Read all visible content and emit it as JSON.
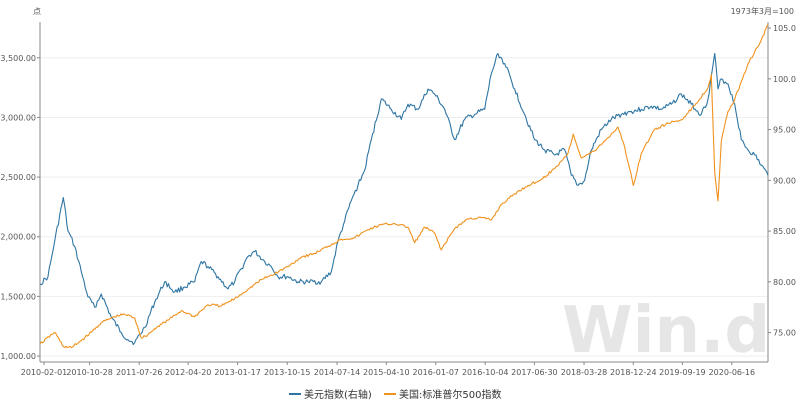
{
  "chart_data": {
    "type": "line",
    "left_unit": "点",
    "right_unit": "1973年3月=100",
    "watermark": "Win.d",
    "x_tick_labels": [
      "2010-02-01",
      "2010-10-28",
      "2011-07-26",
      "2012-04-20",
      "2013-01-17",
      "2013-10-15",
      "2014-07-14",
      "2015-04-10",
      "2016-01-07",
      "2016-10-04",
      "2017-06-30",
      "2018-03-28",
      "2018-12-24",
      "2019-09-19",
      "2020-06-16"
    ],
    "left_axis": {
      "min": 950,
      "max": 3800,
      "ticks": [
        "1,000.00",
        "1,500.00",
        "2,000.00",
        "2,500.00",
        "3,000.00",
        "3,500.00"
      ],
      "tick_values": [
        1000,
        1500,
        2000,
        2500,
        3000,
        3500
      ]
    },
    "right_axis": {
      "min": 72.1,
      "max": 105.6,
      "ticks": [
        "75.00",
        "80.00",
        "85.00",
        "90.00",
        "95.00",
        "100.00",
        "105.00"
      ],
      "tick_values": [
        75,
        80,
        85,
        90,
        95,
        100,
        105
      ]
    },
    "series": [
      {
        "name": "美元指数(右轴)",
        "axis": "right",
        "color": "#2e75a3",
        "x": [
          2010.08,
          2010.2,
          2010.3,
          2010.43,
          2010.5,
          2010.6,
          2010.7,
          2010.8,
          2010.9,
          2011.0,
          2011.15,
          2011.3,
          2011.4,
          2011.5,
          2011.65,
          2011.8,
          2011.95,
          2012.1,
          2012.25,
          2012.4,
          2012.5,
          2012.6,
          2012.75,
          2012.9,
          2013.0,
          2013.1,
          2013.2,
          2013.3,
          2013.45,
          2013.55,
          2013.65,
          2013.8,
          2013.95,
          2014.1,
          2014.3,
          2014.45,
          2014.55,
          2014.65,
          2014.75,
          2014.85,
          2014.95,
          2015.05,
          2015.2,
          2015.35,
          2015.5,
          2015.6,
          2015.75,
          2015.9,
          2016.0,
          2016.15,
          2016.3,
          2016.45,
          2016.6,
          2016.75,
          2016.85,
          2016.95,
          2017.05,
          2017.2,
          2017.35,
          2017.5,
          2017.65,
          2017.8,
          2017.95,
          2018.05,
          2018.15,
          2018.25,
          2018.35,
          2018.5,
          2018.65,
          2018.8,
          2018.95,
          2019.1,
          2019.25,
          2019.4,
          2019.55,
          2019.7,
          2019.85,
          2020.0,
          2020.1,
          2020.2,
          2020.25,
          2020.3,
          2020.4,
          2020.5,
          2020.6,
          2020.7,
          2020.8,
          2020.9,
          2021.0
        ],
        "y": [
          79.8,
          80.5,
          84.0,
          88.3,
          85.0,
          83.5,
          81.0,
          78.5,
          77.5,
          78.8,
          76.5,
          75.0,
          74.3,
          74.0,
          75.5,
          78.0,
          80.0,
          79.0,
          79.5,
          80.0,
          82.0,
          81.5,
          80.5,
          79.3,
          80.0,
          81.3,
          82.5,
          83.0,
          82.0,
          81.5,
          80.5,
          80.5,
          80.0,
          80.0,
          80.0,
          81.0,
          84.0,
          86.0,
          88.0,
          89.5,
          91.0,
          94.0,
          98.0,
          97.0,
          96.0,
          97.5,
          97.0,
          99.0,
          98.5,
          97.0,
          94.0,
          96.0,
          96.5,
          97.0,
          100.5,
          102.5,
          101.5,
          99.0,
          96.5,
          94.0,
          93.0,
          92.5,
          93.0,
          90.5,
          89.5,
          90.0,
          93.0,
          95.0,
          96.0,
          96.5,
          96.8,
          97.0,
          97.3,
          97.0,
          97.5,
          98.5,
          97.5,
          96.5,
          98.0,
          102.5,
          99.0,
          100.0,
          99.5,
          97.5,
          94.0,
          93.0,
          92.5,
          91.5,
          90.5
        ]
      },
      {
        "name": "美国:标准普尔500指数",
        "axis": "left",
        "color": "#f0921e",
        "x": [
          2010.08,
          2010.3,
          2010.43,
          2010.55,
          2010.7,
          2010.85,
          2011.0,
          2011.2,
          2011.35,
          2011.5,
          2011.6,
          2011.7,
          2011.85,
          2012.0,
          2012.2,
          2012.4,
          2012.6,
          2012.8,
          2013.0,
          2013.2,
          2013.4,
          2013.6,
          2013.8,
          2014.0,
          2014.2,
          2014.4,
          2014.6,
          2014.8,
          2015.0,
          2015.2,
          2015.4,
          2015.6,
          2015.7,
          2015.85,
          2016.0,
          2016.1,
          2016.3,
          2016.5,
          2016.7,
          2016.85,
          2017.0,
          2017.2,
          2017.4,
          2017.6,
          2017.8,
          2018.0,
          2018.08,
          2018.2,
          2018.4,
          2018.6,
          2018.75,
          2018.85,
          2018.98,
          2019.1,
          2019.3,
          2019.5,
          2019.7,
          2019.9,
          2020.1,
          2020.15,
          2020.2,
          2020.25,
          2020.3,
          2020.4,
          2020.5,
          2020.6,
          2020.7,
          2020.8,
          2020.9,
          2021.0
        ],
        "y": [
          1100,
          1200,
          1080,
          1070,
          1130,
          1200,
          1280,
          1330,
          1350,
          1320,
          1150,
          1180,
          1250,
          1300,
          1380,
          1330,
          1430,
          1420,
          1480,
          1560,
          1640,
          1690,
          1750,
          1830,
          1860,
          1920,
          1980,
          1990,
          2060,
          2100,
          2110,
          2080,
          1950,
          2080,
          2030,
          1890,
          2070,
          2150,
          2160,
          2140,
          2270,
          2360,
          2430,
          2480,
          2570,
          2700,
          2860,
          2660,
          2720,
          2830,
          2920,
          2750,
          2430,
          2700,
          2900,
          2950,
          2980,
          3100,
          3250,
          3360,
          2540,
          2300,
          2800,
          3050,
          3150,
          3300,
          3450,
          3550,
          3650,
          3780
        ]
      }
    ]
  }
}
